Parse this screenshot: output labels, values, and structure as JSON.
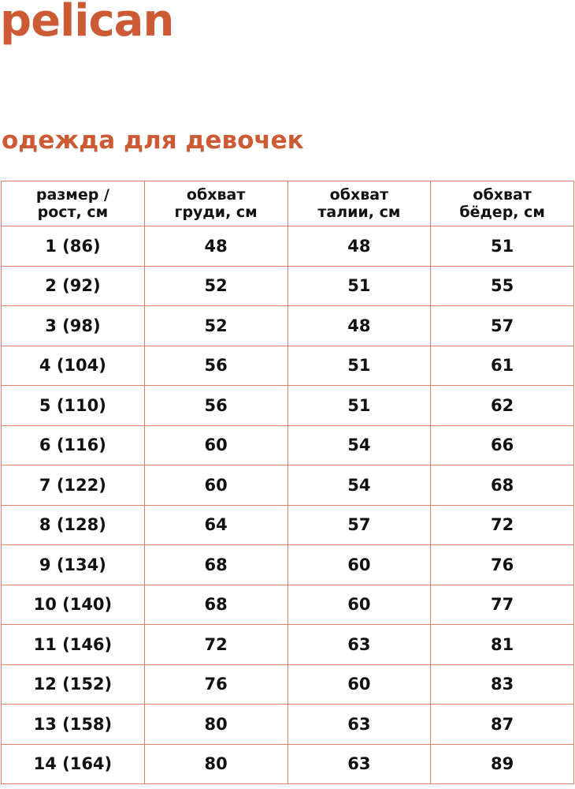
{
  "brand": {
    "logo": "pelican",
    "color": "#cc5a35"
  },
  "title": "одежда для девочек",
  "table": {
    "border_color": "#d9826a",
    "headers": [
      [
        "размер /",
        "рост, см"
      ],
      [
        "обхват",
        "груди, см"
      ],
      [
        "обхват",
        "талии, см"
      ],
      [
        "обхват",
        "бёдер, см"
      ]
    ],
    "rows": [
      [
        "1 (86)",
        "48",
        "48",
        "51"
      ],
      [
        "2 (92)",
        "52",
        "51",
        "55"
      ],
      [
        "3 (98)",
        "52",
        "48",
        "57"
      ],
      [
        "4 (104)",
        "56",
        "51",
        "61"
      ],
      [
        "5 (110)",
        "56",
        "51",
        "62"
      ],
      [
        "6 (116)",
        "60",
        "54",
        "66"
      ],
      [
        "7 (122)",
        "60",
        "54",
        "68"
      ],
      [
        "8 (128)",
        "64",
        "57",
        "72"
      ],
      [
        "9 (134)",
        "68",
        "60",
        "76"
      ],
      [
        "10 (140)",
        "68",
        "60",
        "77"
      ],
      [
        "11 (146)",
        "72",
        "63",
        "81"
      ],
      [
        "12 (152)",
        "76",
        "60",
        "83"
      ],
      [
        "13 (158)",
        "80",
        "63",
        "87"
      ],
      [
        "14 (164)",
        "80",
        "63",
        "89"
      ]
    ]
  }
}
